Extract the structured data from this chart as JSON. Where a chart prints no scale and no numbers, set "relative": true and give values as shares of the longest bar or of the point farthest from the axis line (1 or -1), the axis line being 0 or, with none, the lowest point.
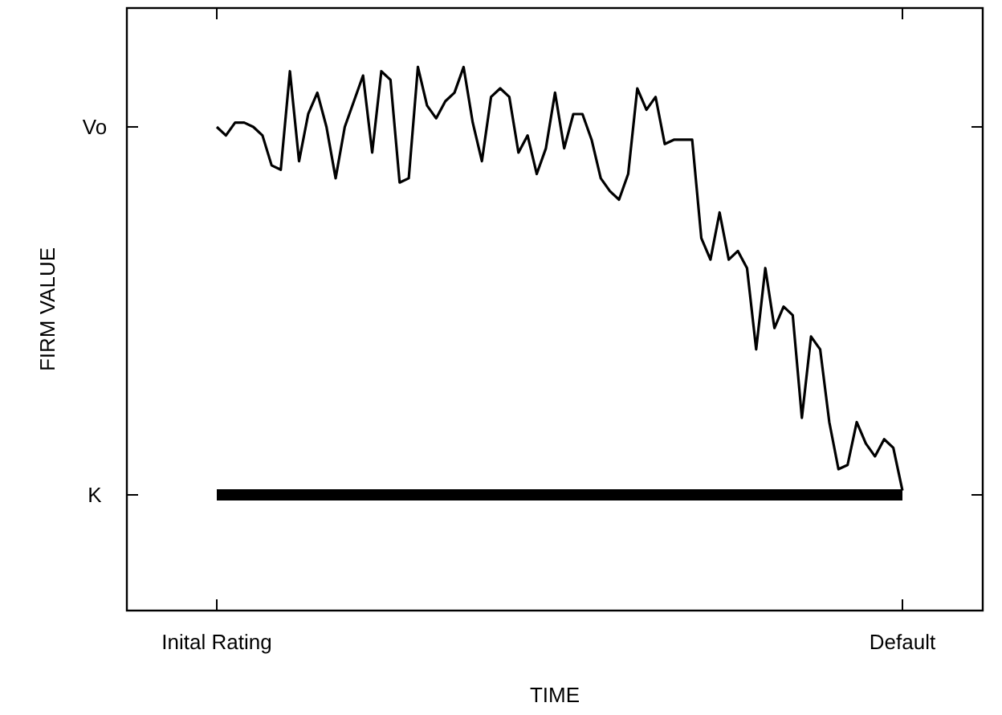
{
  "chart_data": {
    "type": "line",
    "relative": true,
    "xlabel": "TIME",
    "ylabel": "FIRM VALUE",
    "categories": [
      "Inital Rating",
      null,
      null,
      null,
      null,
      null,
      null,
      null,
      null,
      null,
      null,
      null,
      null,
      null,
      null,
      null,
      null,
      null,
      null,
      null,
      null,
      null,
      null,
      null,
      null,
      null,
      null,
      null,
      null,
      null,
      null,
      null,
      null,
      null,
      null,
      null,
      null,
      null,
      null,
      null,
      null,
      null,
      null,
      null,
      null,
      null,
      null,
      null,
      null,
      null,
      null,
      null,
      null,
      null,
      null,
      null,
      null,
      null,
      null,
      null,
      null,
      null,
      null,
      null,
      null,
      null,
      null,
      null,
      null,
      null,
      null,
      null,
      null,
      null,
      null,
      "Default"
    ],
    "series": [
      {
        "color": "#000000",
        "values": [
          0.86,
          0.84,
          0.87,
          0.87,
          0.86,
          0.84,
          0.77,
          0.76,
          0.99,
          0.78,
          0.89,
          0.94,
          0.86,
          0.74,
          0.86,
          0.92,
          0.98,
          0.8,
          0.99,
          0.97,
          0.73,
          0.74,
          1.0,
          0.91,
          0.88,
          0.92,
          0.94,
          1.0,
          0.87,
          0.78,
          0.93,
          0.95,
          0.93,
          0.8,
          0.84,
          0.75,
          0.81,
          0.94,
          0.81,
          0.89,
          0.89,
          0.83,
          0.74,
          0.71,
          0.69,
          0.75,
          0.95,
          0.9,
          0.93,
          0.82,
          0.83,
          0.83,
          0.83,
          0.6,
          0.55,
          0.66,
          0.55,
          0.57,
          0.53,
          0.34,
          0.53,
          0.39,
          0.44,
          0.42,
          0.18,
          0.37,
          0.34,
          0.17,
          0.06,
          0.07,
          0.17,
          0.12,
          0.09,
          0.13,
          0.11,
          0.01
        ]
      }
    ],
    "ref_lines": [
      {
        "axis": "y",
        "value": 0,
        "label": "K",
        "color": "#000000"
      }
    ],
    "annotations": [
      "Vo"
    ]
  }
}
